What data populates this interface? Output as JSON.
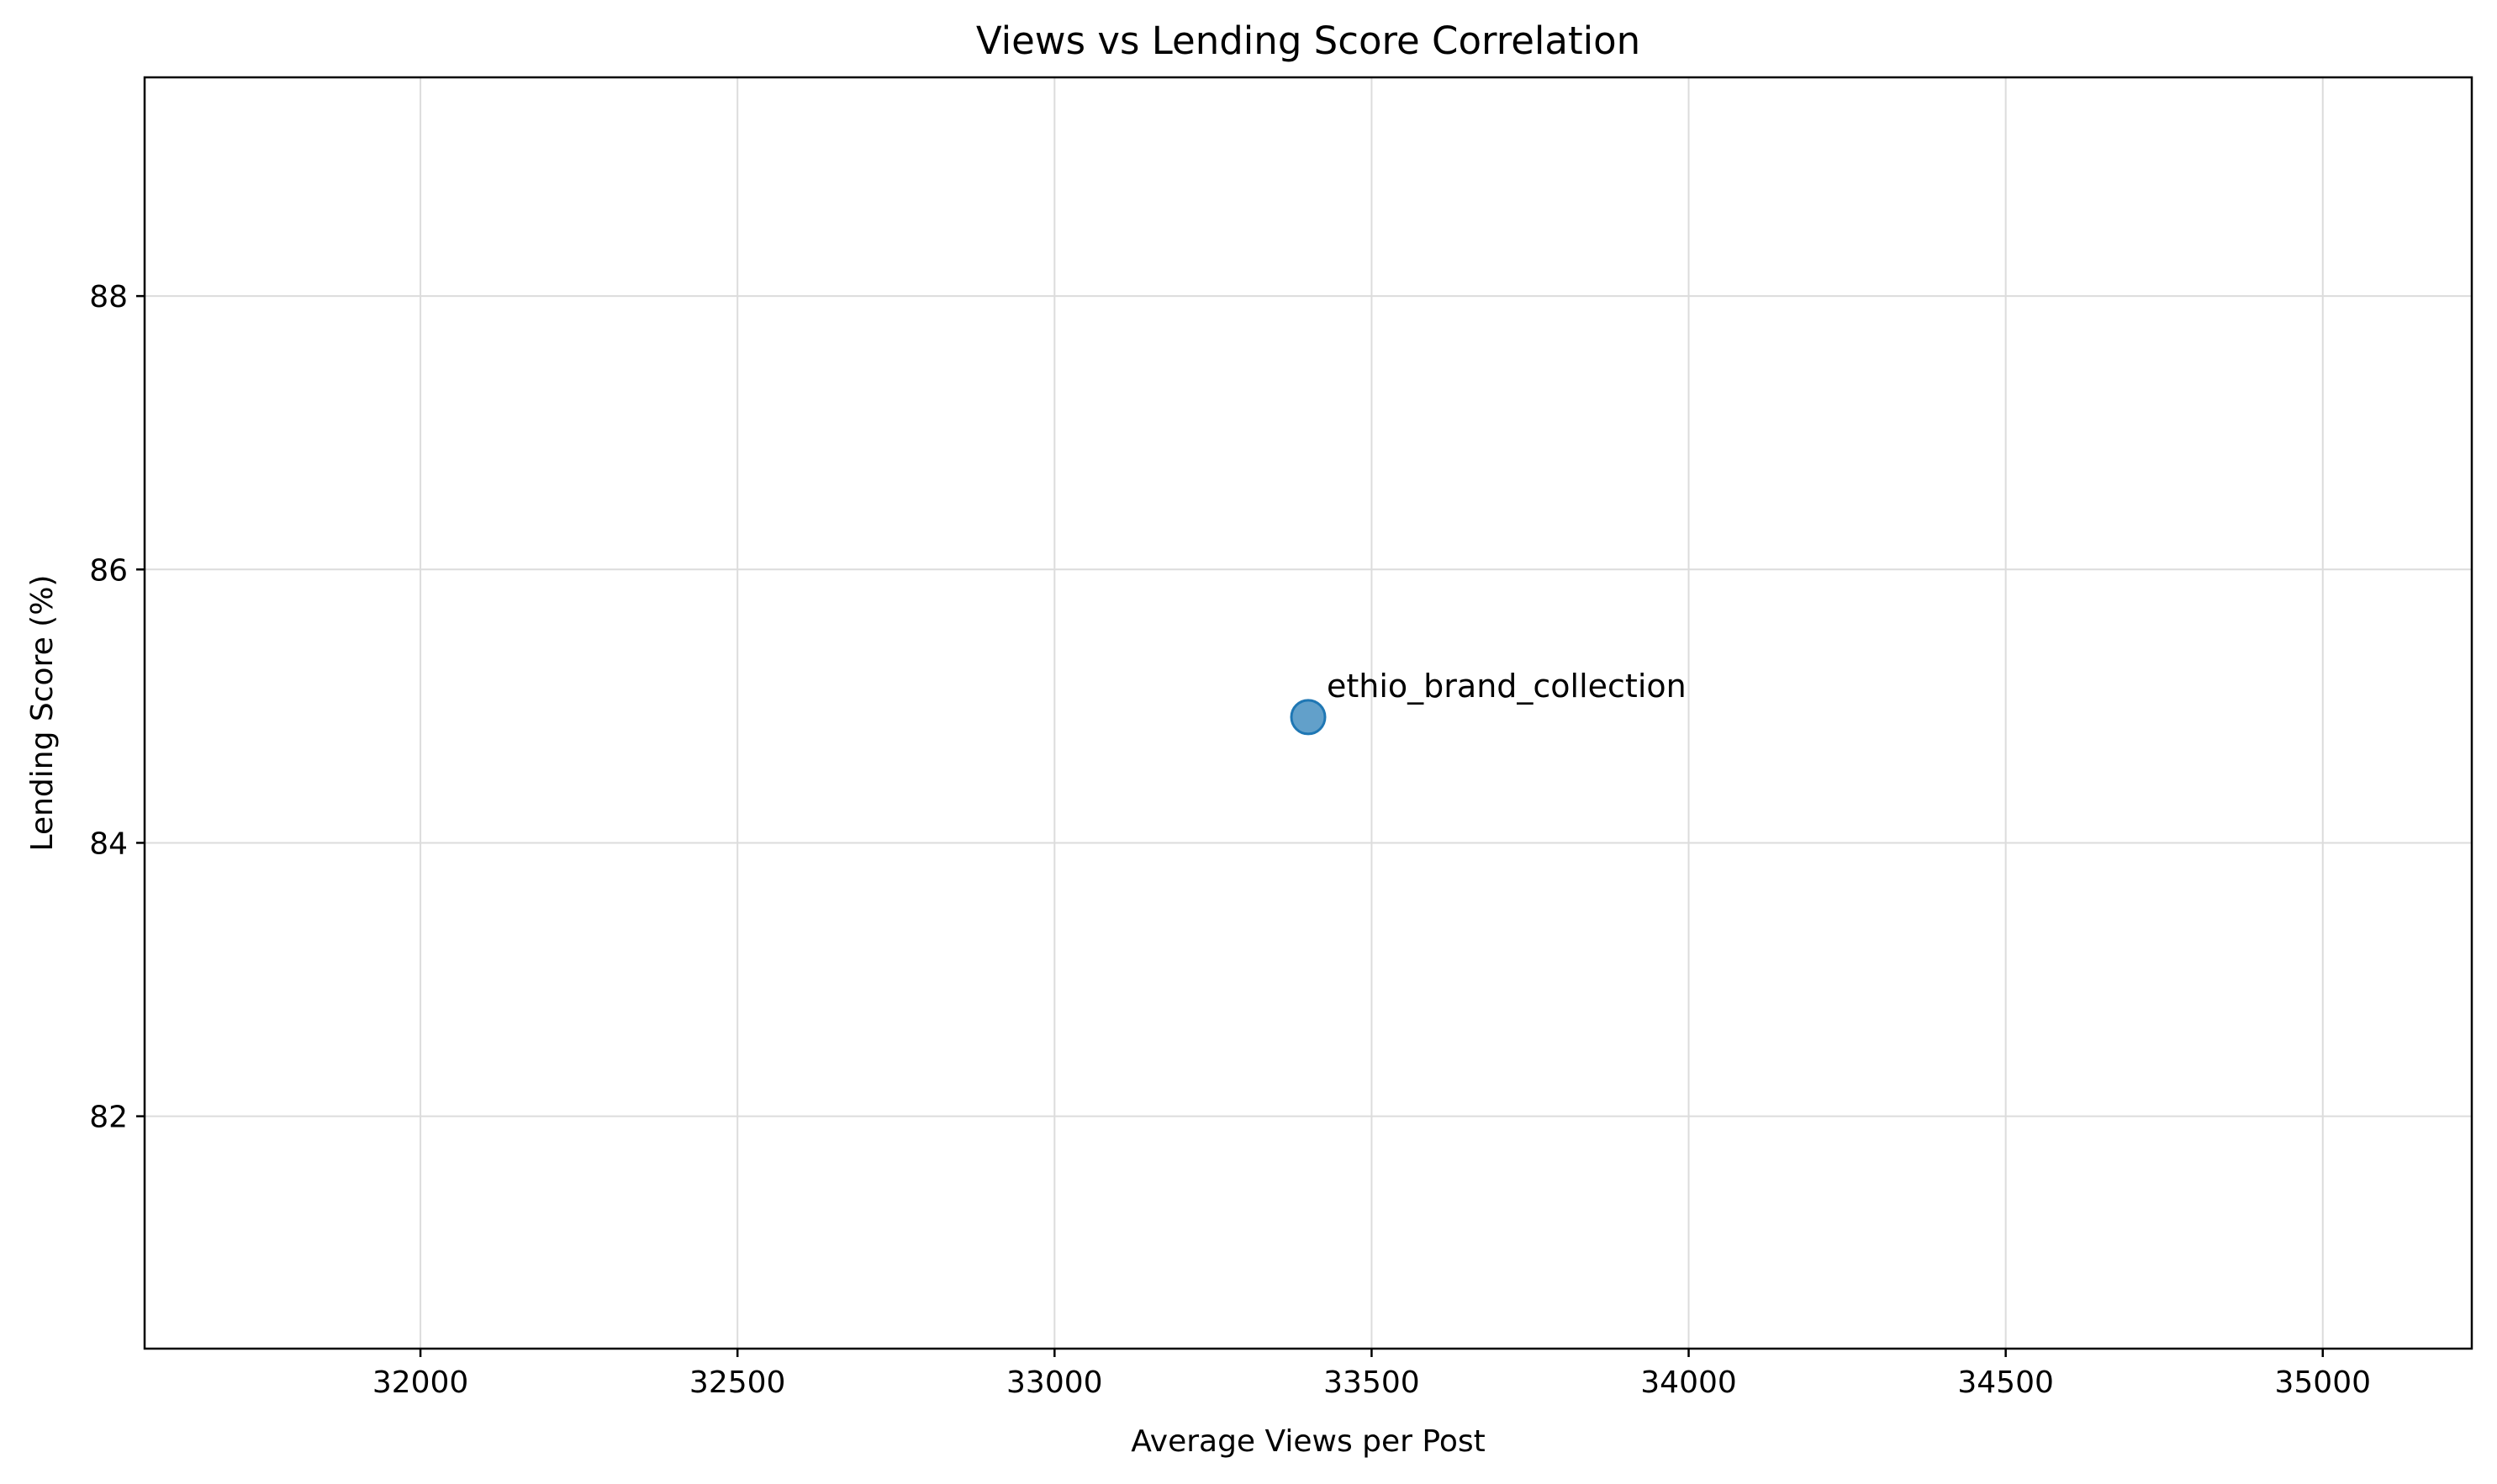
{
  "chart_data": {
    "type": "scatter",
    "title": "Views vs Lending Score Correlation",
    "xlabel": "Average Views per Post",
    "ylabel": "Lending Score (%)",
    "xlim": [
      31565,
      35235
    ],
    "ylim": [
      80.3,
      89.6
    ],
    "xticks": [
      32000,
      32500,
      33000,
      33500,
      34000,
      34500,
      35000
    ],
    "yticks": [
      82,
      84,
      86,
      88
    ],
    "grid": true,
    "points": [
      {
        "x": 33400,
        "y": 84.92,
        "label": "ethio_brand_collection"
      }
    ],
    "colors": {
      "point_fill": "#1f77b4",
      "grid": "#dcdcdc",
      "axes": "#000000"
    }
  }
}
